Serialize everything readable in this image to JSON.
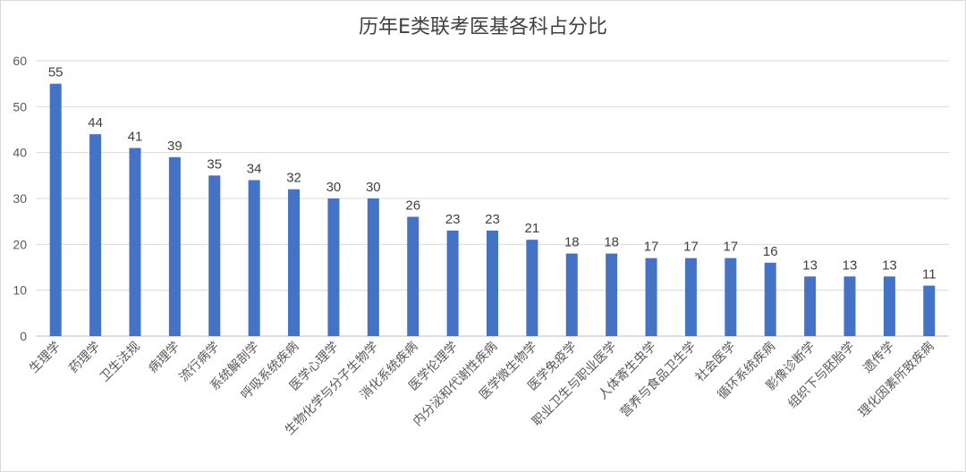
{
  "chart_data": {
    "type": "bar",
    "title": "历年E类联考医基各科占分比",
    "categories": [
      "生理学",
      "药理学",
      "卫生法规",
      "病理学",
      "流行病学",
      "系统解剖学",
      "呼吸系统疾病",
      "医学心理学",
      "生物化学与分子生物学",
      "消化系统疾病",
      "医学伦理学",
      "内分泌和代谢性疾病",
      "医学微生物学",
      "医学免疫学",
      "职业卫生与职业医学",
      "人体寄生虫学",
      "营养与食品卫生学",
      "社会医学",
      "循环系统疾病",
      "影像诊断学",
      "组织下与胚胎学",
      "遗传学",
      "理化因素所致疾病"
    ],
    "values": [
      55,
      44,
      41,
      39,
      35,
      34,
      32,
      30,
      30,
      26,
      23,
      23,
      21,
      18,
      18,
      17,
      17,
      17,
      16,
      13,
      13,
      13,
      11
    ],
    "ylim": [
      0,
      60
    ],
    "yticks": [
      0,
      10,
      20,
      30,
      40,
      50,
      60
    ],
    "grid": true,
    "legend": "none",
    "bar_color": "#4472c4",
    "data_labels": true
  }
}
